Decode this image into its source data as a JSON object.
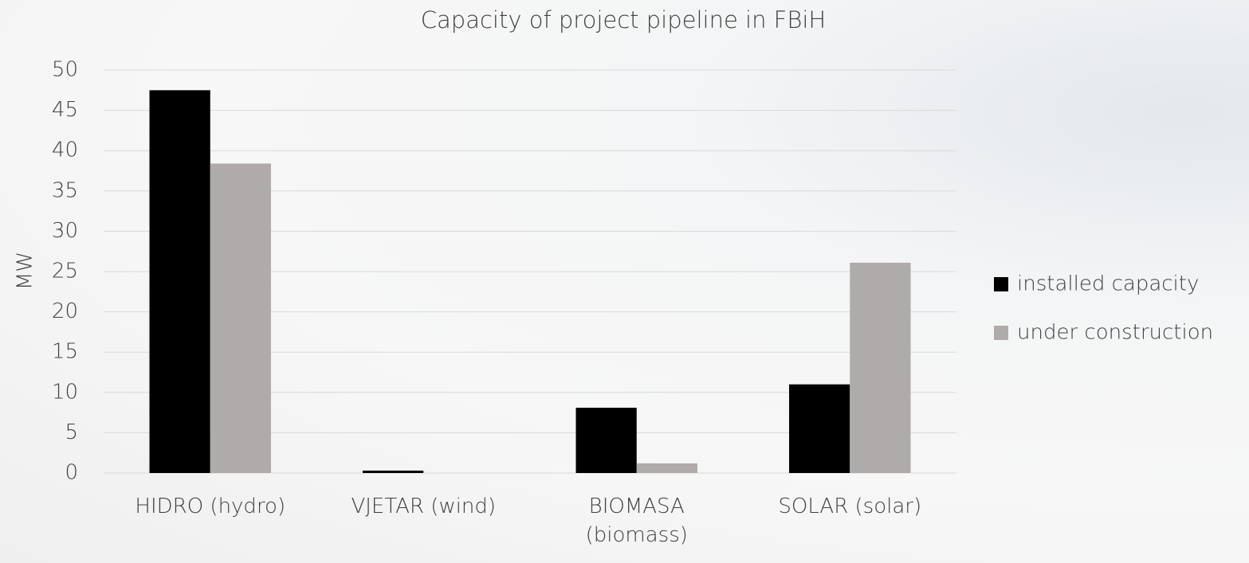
{
  "chart_data": {
    "type": "bar",
    "title": "Capacity of project pipeline in FBiH",
    "y_label": "MW",
    "categories": [
      "HIDRO (hydro)",
      "VJETAR (wind)",
      "BIOMASA (biomass)",
      "SOLAR (solar)"
    ],
    "series": [
      {
        "name": "installed capacity",
        "color": "#000000",
        "values": [
          47.5,
          0.3,
          8.1,
          11
        ]
      },
      {
        "name": "under construction",
        "color": "#afabab",
        "values": [
          38.4,
          0,
          1.2,
          26.1
        ]
      }
    ],
    "ylim": [
      0,
      50
    ],
    "yticks": [
      0,
      5,
      10,
      15,
      20,
      25,
      30,
      35,
      40,
      45,
      50
    ],
    "grid": true,
    "legend": "right"
  }
}
